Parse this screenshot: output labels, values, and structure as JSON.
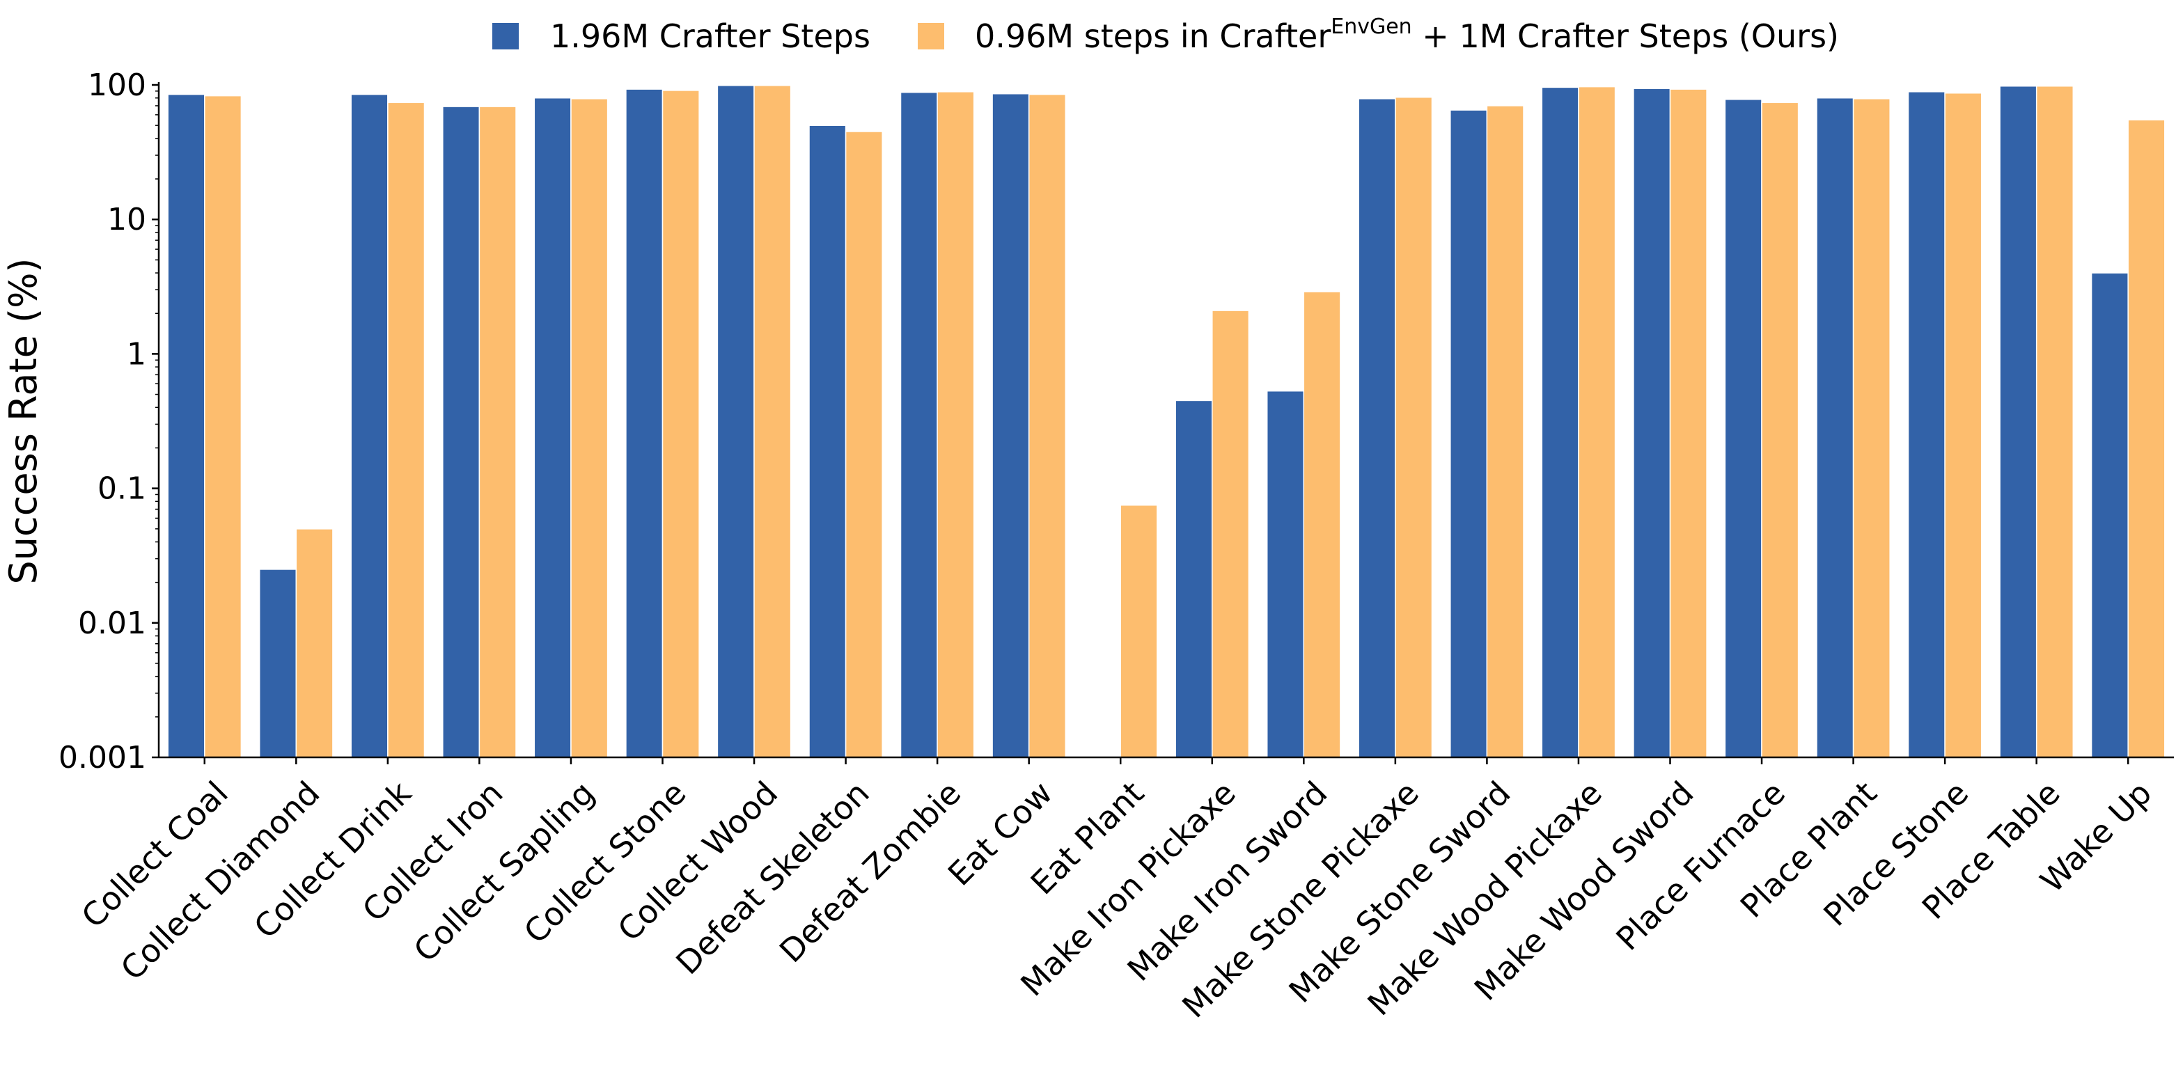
{
  "chart_data": {
    "type": "bar",
    "ylabel": "Success Rate (%)",
    "xlabel": "",
    "title": "",
    "yscale": "log",
    "ylim": [
      0.001,
      100
    ],
    "yticks": [
      0.001,
      0.01,
      0.1,
      1,
      10,
      100
    ],
    "ytick_labels": [
      "0.001",
      "0.01",
      "0.1",
      "1",
      "10",
      "100"
    ],
    "legend_position": "top-center",
    "categories": [
      "Collect Coal",
      "Collect Diamond",
      "Collect Drink",
      "Collect Iron",
      "Collect Sapling",
      "Collect Stone",
      "Collect Wood",
      "Defeat Skeleton",
      "Defeat Zombie",
      "Eat Cow",
      "Eat Plant",
      "Make Iron Pickaxe",
      "Make Iron Sword",
      "Make Stone Pickaxe",
      "Make Stone Sword",
      "Make Wood Pickaxe",
      "Make Wood Sword",
      "Place Furnace",
      "Place Plant",
      "Place Stone",
      "Place Table",
      "Wake Up"
    ],
    "series": [
      {
        "name": "1.96M Crafter Steps",
        "color": "#3262a8",
        "values": [
          85,
          0.025,
          85,
          69,
          80,
          93,
          99,
          50,
          88,
          86,
          null,
          0.45,
          0.53,
          79,
          65,
          96,
          94,
          78,
          80,
          89,
          98,
          4.0
        ]
      },
      {
        "name": "0.96M steps in Crafter",
        "name_superscript": "EnvGen",
        "name_suffix": " + 1M Crafter Steps (Ours)",
        "color": "#fdbd6e",
        "values": [
          83,
          0.05,
          74,
          69,
          79,
          91,
          99,
          45,
          89,
          85,
          0.075,
          2.1,
          2.9,
          81,
          70,
          97,
          93,
          74,
          79,
          87,
          98,
          55
        ]
      }
    ]
  }
}
